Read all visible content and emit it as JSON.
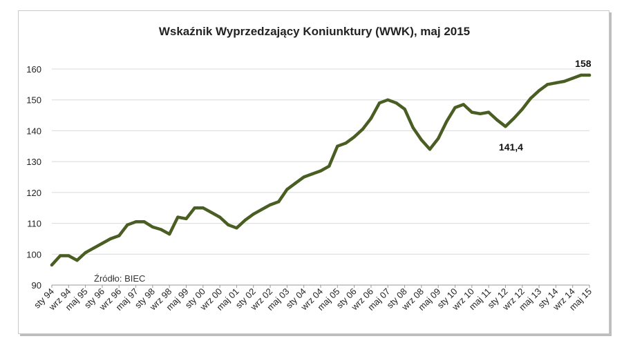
{
  "chart_data": {
    "type": "line",
    "title": "Wskaźnik Wyprzedzający Koniunktury (WWK), maj 2015",
    "source_note": "Źródło: BIEC",
    "xlabel": "",
    "ylabel": "",
    "ylim": [
      90,
      160
    ],
    "yticks": [
      "90",
      "100",
      "110",
      "120",
      "130",
      "140",
      "150",
      "160"
    ],
    "xticks": [
      "sty 94",
      "wrz 94",
      "maj 95",
      "sty 96",
      "wrz 96",
      "maj 97",
      "sty 98",
      "wrz 98",
      "maj 99",
      "sty 00",
      "wrz 00",
      "maj 01",
      "sty 02",
      "wrz 02",
      "maj 03",
      "sty 04",
      "wrz 04",
      "maj 05",
      "sty 06",
      "wrz 06",
      "maj 07",
      "sty 08",
      "wrz 08",
      "maj 09",
      "sty 10",
      "wrz 10",
      "maj 11",
      "sty 12",
      "wrz 12",
      "maj 13",
      "sty 14",
      "wrz 14",
      "maj 15"
    ],
    "grid": true,
    "line_color": "#4a5e23",
    "series": [
      {
        "name": "",
        "x": [
          "1994-01",
          "1994-05",
          "1994-09",
          "1995-01",
          "1995-05",
          "1995-09",
          "1996-01",
          "1996-05",
          "1996-09",
          "1997-01",
          "1997-05",
          "1997-09",
          "1998-01",
          "1998-05",
          "1998-09",
          "1999-01",
          "1999-05",
          "1999-09",
          "2000-01",
          "2000-05",
          "2000-09",
          "2001-01",
          "2001-05",
          "2001-09",
          "2002-01",
          "2002-05",
          "2002-09",
          "2003-01",
          "2003-05",
          "2003-09",
          "2004-01",
          "2004-05",
          "2004-09",
          "2005-01",
          "2005-05",
          "2005-09",
          "2006-01",
          "2006-05",
          "2006-09",
          "2007-01",
          "2007-05",
          "2007-09",
          "2008-01",
          "2008-05",
          "2008-09",
          "2009-01",
          "2009-05",
          "2009-09",
          "2010-01",
          "2010-05",
          "2010-09",
          "2011-01",
          "2011-05",
          "2011-09",
          "2012-01",
          "2012-05",
          "2012-09",
          "2013-01",
          "2013-05",
          "2013-09",
          "2014-01",
          "2014-05",
          "2014-09",
          "2015-01",
          "2015-05"
        ],
        "y": [
          96.5,
          99.5,
          99.5,
          98.0,
          100.5,
          102.0,
          103.5,
          105.0,
          106.0,
          109.5,
          110.5,
          110.5,
          108.8,
          108.0,
          106.5,
          112.0,
          111.5,
          115.0,
          115.0,
          113.5,
          112.0,
          109.5,
          108.5,
          111.0,
          113.0,
          114.5,
          116.0,
          117.0,
          121.0,
          123.0,
          125.0,
          126.0,
          127.0,
          128.5,
          135.0,
          136.0,
          138.0,
          140.5,
          144.0,
          149.0,
          150.0,
          149.0,
          147.0,
          141.0,
          137.0,
          134.0,
          137.5,
          143.0,
          147.5,
          148.5,
          146.0,
          145.5,
          146.0,
          143.5,
          141.4,
          144.0,
          147.0,
          150.5,
          153.0,
          155.0,
          155.5,
          156.0,
          157.0,
          158.0,
          158.0
        ]
      }
    ],
    "annotations": [
      {
        "text": "158",
        "x": "2015-01",
        "y": 158
      },
      {
        "text": "141,4",
        "x": "2012-01",
        "y": 141.4
      }
    ]
  }
}
